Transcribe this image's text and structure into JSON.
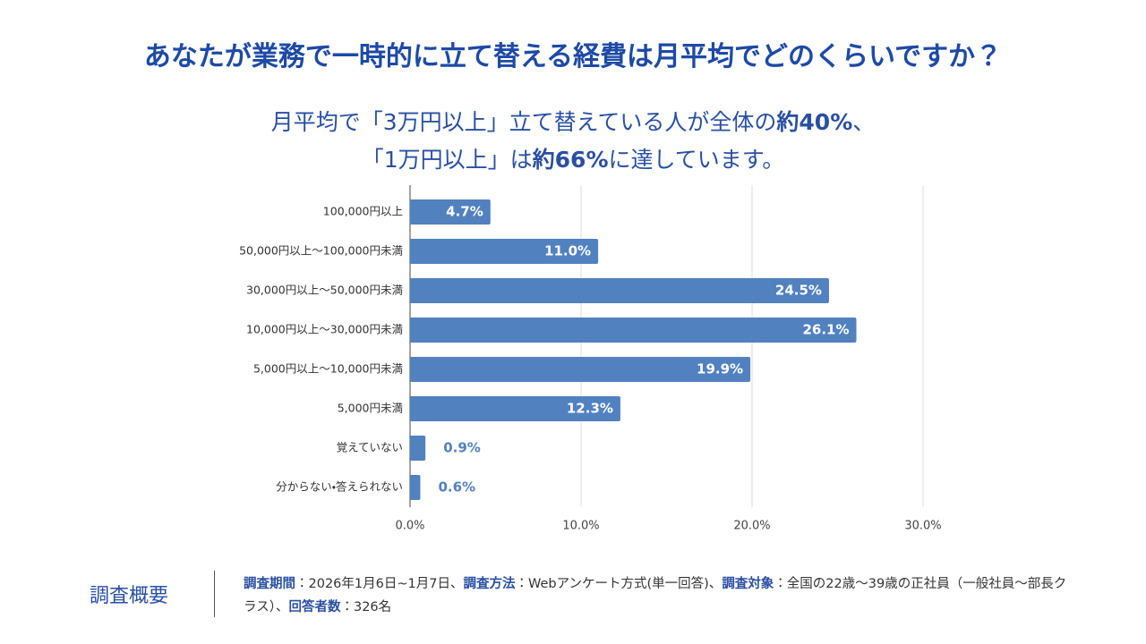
{
  "chart_data": {
    "type": "bar",
    "orientation": "horizontal",
    "title": "あなたが業務で一時的に立て替える経費は月平均でどのくらいですか？",
    "subtitle": {
      "line1": [
        "月平均で「3万円以上」立て替えている人が全体の",
        "約40%",
        "、"
      ],
      "line2": [
        "「1万円以上」は",
        "約66%",
        "に達しています。"
      ]
    },
    "categories": [
      "100,000円以上",
      "50,000円以上〜100,000円未満",
      "30,000円以上〜50,000円未満",
      "10,000円以上〜30,000円未満",
      "5,000円以上〜10,000円未満",
      "5,000円未満",
      "覚えていない",
      "分からない・答えられない"
    ],
    "values": [
      4.7,
      11.0,
      24.5,
      26.1,
      19.9,
      12.3,
      0.9,
      0.6
    ],
    "value_labels": [
      "4.7%",
      "11.0%",
      "24.5%",
      "26.1%",
      "19.9%",
      "12.3%",
      "0.9%",
      "0.6%"
    ],
    "color": "#5181bf",
    "xlim": [
      0,
      30
    ],
    "xticks": [
      {
        "value": 0,
        "label": "0.0%"
      },
      {
        "value": 10,
        "label": "10.0%"
      },
      {
        "value": 20,
        "label": "20.0%"
      },
      {
        "value": 30,
        "label": "30.0%"
      }
    ],
    "grid": true
  },
  "footer": {
    "heading": "調査概要",
    "parts": [
      [
        "調査期間",
        "：2026年1月6日~1月7日、"
      ],
      [
        "調査方法",
        "：Webアンケート方式(単一回答)、"
      ],
      [
        "調査対象",
        "：全国の22歳〜39歳の正社員（一般社員〜部長クラス）、"
      ],
      [
        "回答者数",
        "：326名"
      ]
    ]
  }
}
